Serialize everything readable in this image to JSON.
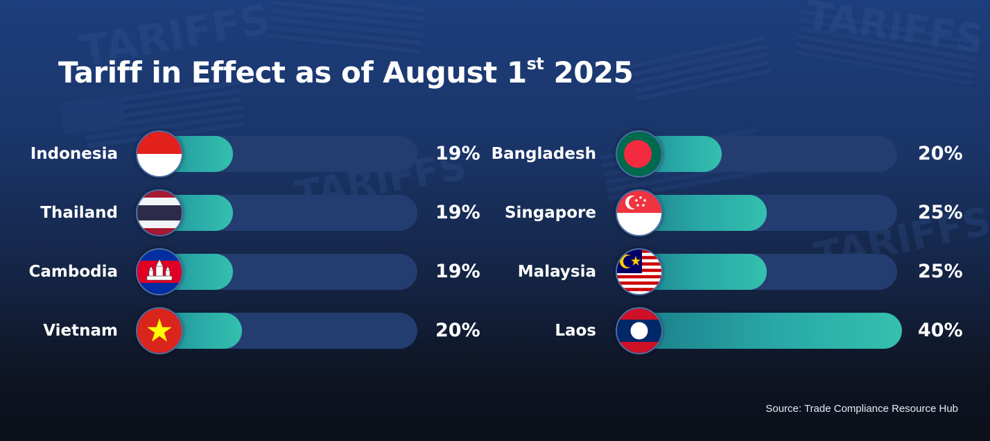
{
  "title": {
    "main": "Tariff in Effect as of August 1",
    "superscript": "st",
    "year": "2025"
  },
  "source": "Source: Trade Compliance Resource Hub",
  "background_watermark": "TARIFFS",
  "colors": {
    "background_top": "#1d3e7c",
    "background_bottom": "#0b0f19",
    "bar_track": "#243d71",
    "bar_fill_start": "#1a7a88",
    "bar_fill_end": "#34c0ae",
    "text": "#ffffff"
  },
  "chart_data": {
    "type": "bar",
    "orientation": "horizontal",
    "title": "Tariff in Effect as of August 1st 2025",
    "unit": "%",
    "columns": [
      {
        "categories": [
          "Indonesia",
          "Thailand",
          "Cambodia",
          "Vietnam"
        ],
        "values": [
          19,
          19,
          19,
          20
        ],
        "value_labels": [
          "19%",
          "19%",
          "19%",
          "20%"
        ],
        "flag_icons": [
          "indonesia-flag-icon",
          "thailand-flag-icon",
          "cambodia-flag-icon",
          "vietnam-flag-icon"
        ]
      },
      {
        "categories": [
          "Bangladesh",
          "Singapore",
          "Malaysia",
          "Laos"
        ],
        "values": [
          20,
          25,
          25,
          40
        ],
        "value_labels": [
          "20%",
          "25%",
          "25%",
          "40%"
        ],
        "flag_icons": [
          "bangladesh-flag-icon",
          "singapore-flag-icon",
          "malaysia-flag-icon",
          "laos-flag-icon"
        ]
      }
    ],
    "legend": "none",
    "grid": false
  }
}
